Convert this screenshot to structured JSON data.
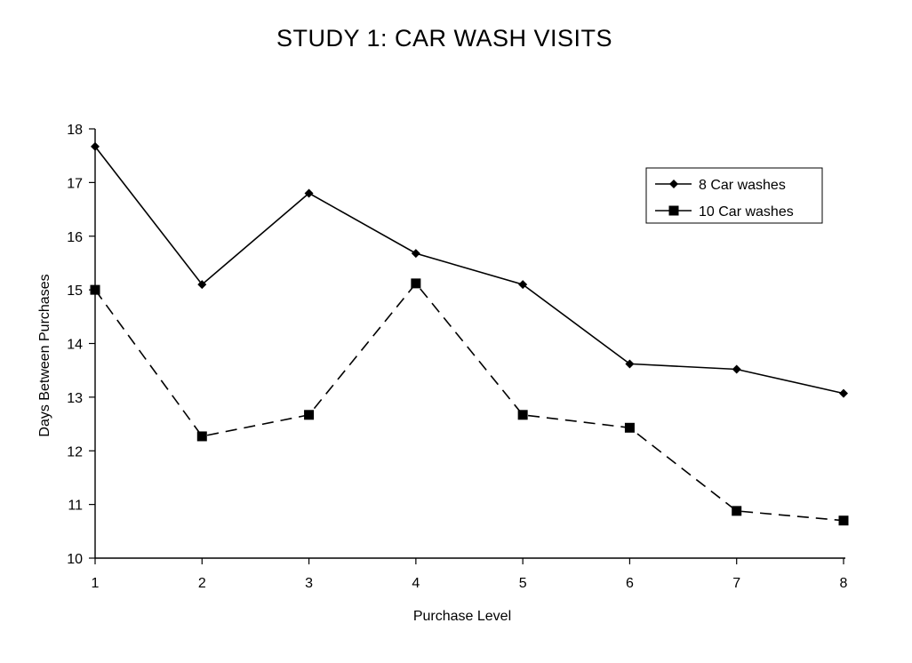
{
  "chart_data": {
    "type": "line",
    "title": "STUDY 1: CAR WASH VISITS",
    "xlabel": "Purchase Level",
    "ylabel": "Days Between Purchases",
    "x": [
      1,
      2,
      3,
      4,
      5,
      6,
      7,
      8
    ],
    "x_tick_labels": [
      "1",
      "2",
      "3",
      "4",
      "5",
      "6",
      "7",
      "8"
    ],
    "xlim": [
      1,
      8
    ],
    "ylim": [
      10,
      18
    ],
    "y_ticks": [
      10,
      11,
      12,
      13,
      14,
      15,
      16,
      17,
      18
    ],
    "y_tick_labels": [
      "10",
      "11",
      "12",
      "13",
      "14",
      "15",
      "16",
      "17",
      "18"
    ],
    "grid": false,
    "legend": {
      "placement": "top-right",
      "entries": [
        "8 Car washes",
        "10 Car washes"
      ]
    },
    "series": [
      {
        "name": "8 Car washes",
        "values": [
          17.67,
          15.1,
          16.8,
          15.68,
          15.1,
          13.62,
          13.52,
          13.07
        ],
        "line_style": "solid",
        "marker": "diamond",
        "color": "#000000"
      },
      {
        "name": "10 Car washes",
        "values": [
          15.0,
          12.27,
          12.67,
          15.12,
          12.67,
          12.43,
          10.88,
          10.7
        ],
        "line_style": "dashed",
        "marker": "square",
        "color": "#000000"
      }
    ]
  }
}
